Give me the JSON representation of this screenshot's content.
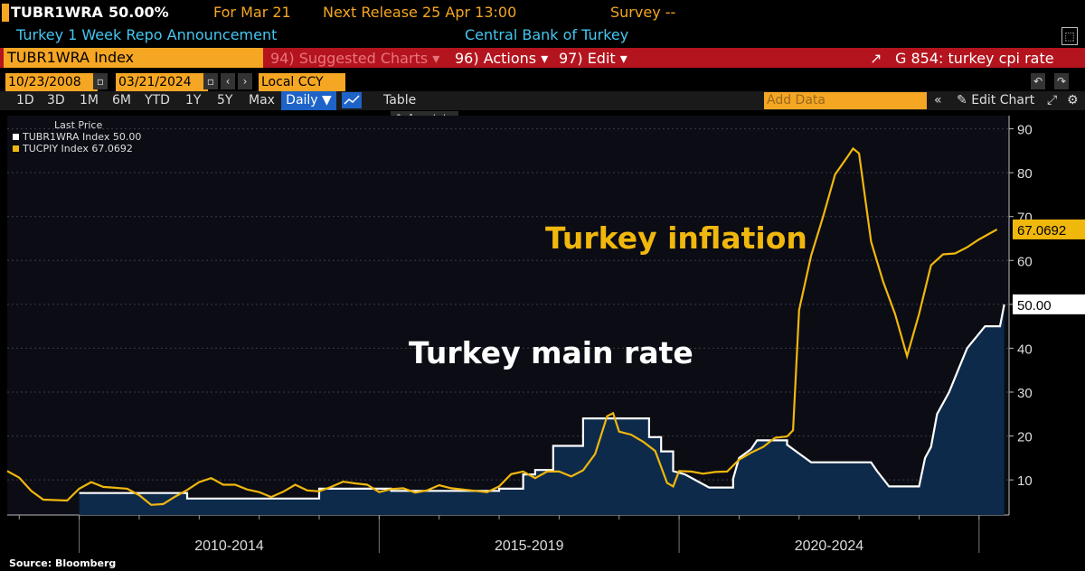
{
  "header": {
    "ticker": "TUBR1WRA",
    "value": "50.00%",
    "for_label": "For Mar 21",
    "next_release": "Next Release 25 Apr 13:00",
    "survey": "Survey --",
    "description": "Turkey 1 Week Repo Announcement",
    "source_org": "Central Bank of Turkey"
  },
  "toolbar": {
    "security": "TUBR1WRA Index",
    "suggested": "94) Suggested Charts ▾",
    "actions": "96) Actions ▾",
    "edit": "97) Edit ▾",
    "related": "G 854: turkey cpi rate",
    "start_date": "10/23/2008",
    "end_date": "03/21/2024",
    "currency": "Local CCY",
    "ranges": [
      "1D",
      "3D",
      "1M",
      "6M",
      "YTD",
      "1Y",
      "5Y",
      "Max"
    ],
    "frequency": "Daily ▼",
    "table": "Table",
    "add_data_placeholder": "Add Data",
    "edit_chart": "Edit Chart",
    "annotate": "Annotate"
  },
  "colors": {
    "orange": "#f5a623",
    "navy_fill": "#0e2a4a",
    "menu_red": "#b4141e",
    "rate_line": "#ffffff",
    "inflation_line": "#f0b70d"
  },
  "icons": [
    "chart-line-icon",
    "settings-gear-icon",
    "undo-icon",
    "redo-icon",
    "pencil-icon",
    "open-external-icon"
  ],
  "chart_data": {
    "type": "line",
    "legend_title": "Last Price",
    "series": [
      {
        "name": "TUBR1WRA Index",
        "last": "50.00",
        "color": "#ffffff",
        "fill": "#0e2a4a",
        "points": [
          [
            2010.0,
            7
          ],
          [
            2011.8,
            7
          ],
          [
            2011.8,
            5.75
          ],
          [
            2014.0,
            5.75
          ],
          [
            2014.0,
            8
          ],
          [
            2015.2,
            8
          ],
          [
            2015.2,
            7.5
          ],
          [
            2017.0,
            7.5
          ],
          [
            2017.0,
            8
          ],
          [
            2017.4,
            8
          ],
          [
            2017.4,
            11.25
          ],
          [
            2017.6,
            11.25
          ],
          [
            2017.6,
            12.25
          ],
          [
            2017.9,
            12.25
          ],
          [
            2017.9,
            17.75
          ],
          [
            2018.4,
            17.75
          ],
          [
            2018.4,
            24
          ],
          [
            2019.5,
            24
          ],
          [
            2019.5,
            19.75
          ],
          [
            2019.7,
            19.75
          ],
          [
            2019.7,
            16.5
          ],
          [
            2019.9,
            16.5
          ],
          [
            2019.9,
            12
          ],
          [
            2020.1,
            11.25
          ],
          [
            2020.3,
            9.75
          ],
          [
            2020.5,
            8.25
          ],
          [
            2020.9,
            8.25
          ],
          [
            2020.9,
            10.25
          ],
          [
            2021.0,
            15
          ],
          [
            2021.2,
            17
          ],
          [
            2021.3,
            19
          ],
          [
            2021.8,
            19
          ],
          [
            2021.8,
            18
          ],
          [
            2022.0,
            16
          ],
          [
            2022.2,
            14
          ],
          [
            2022.5,
            14
          ],
          [
            2023.2,
            14
          ],
          [
            2023.3,
            12
          ],
          [
            2023.5,
            8.5
          ],
          [
            2023.6,
            8.5
          ],
          [
            2024.0,
            8.5
          ],
          [
            2024.1,
            15
          ],
          [
            2024.2,
            17.5
          ],
          [
            2024.3,
            25
          ],
          [
            2024.5,
            30
          ],
          [
            2024.65,
            35
          ],
          [
            2024.8,
            40
          ],
          [
            2024.95,
            42.5
          ],
          [
            2025.1,
            45
          ],
          [
            2025.35,
            45
          ],
          [
            2025.42,
            50
          ]
        ]
      },
      {
        "name": "TUCPIY Index",
        "last": "67.0692",
        "color": "#f0b70d",
        "points": [
          [
            2008.8,
            12
          ],
          [
            2009.0,
            10.5
          ],
          [
            2009.2,
            7.5
          ],
          [
            2009.4,
            5.5
          ],
          [
            2009.6,
            5.4
          ],
          [
            2009.8,
            5.3
          ],
          [
            2010.0,
            8
          ],
          [
            2010.2,
            9.5
          ],
          [
            2010.4,
            8.4
          ],
          [
            2010.6,
            8.2
          ],
          [
            2010.8,
            8
          ],
          [
            2011.0,
            6.5
          ],
          [
            2011.2,
            4.3
          ],
          [
            2011.4,
            4.5
          ],
          [
            2011.6,
            6.2
          ],
          [
            2011.8,
            7.7
          ],
          [
            2012.0,
            9.5
          ],
          [
            2012.2,
            10.4
          ],
          [
            2012.4,
            8.9
          ],
          [
            2012.6,
            8.9
          ],
          [
            2012.8,
            7.8
          ],
          [
            2013.0,
            7.2
          ],
          [
            2013.2,
            6.1
          ],
          [
            2013.4,
            7.3
          ],
          [
            2013.6,
            8.9
          ],
          [
            2013.8,
            7.6
          ],
          [
            2014.0,
            7.4
          ],
          [
            2014.2,
            8.4
          ],
          [
            2014.4,
            9.6
          ],
          [
            2014.6,
            9.2
          ],
          [
            2014.8,
            8.9
          ],
          [
            2015.0,
            7.2
          ],
          [
            2015.2,
            7.9
          ],
          [
            2015.4,
            8.1
          ],
          [
            2015.6,
            7.1
          ],
          [
            2015.8,
            7.6
          ],
          [
            2016.0,
            8.8
          ],
          [
            2016.2,
            8.1
          ],
          [
            2016.4,
            7.8
          ],
          [
            2016.6,
            7.5
          ],
          [
            2016.8,
            7.2
          ],
          [
            2017.0,
            8.5
          ],
          [
            2017.2,
            11.3
          ],
          [
            2017.4,
            11.9
          ],
          [
            2017.6,
            10.4
          ],
          [
            2017.8,
            11.9
          ],
          [
            2018.0,
            11.9
          ],
          [
            2018.2,
            10.8
          ],
          [
            2018.4,
            12.2
          ],
          [
            2018.6,
            15.9
          ],
          [
            2018.8,
            24.5
          ],
          [
            2018.9,
            25.2
          ],
          [
            2019.0,
            21
          ],
          [
            2019.2,
            20.3
          ],
          [
            2019.4,
            18.7
          ],
          [
            2019.6,
            16.6
          ],
          [
            2019.8,
            9.3
          ],
          [
            2019.9,
            8.5
          ],
          [
            2020.0,
            12
          ],
          [
            2020.2,
            11.9
          ],
          [
            2020.4,
            11.4
          ],
          [
            2020.6,
            11.8
          ],
          [
            2020.8,
            11.9
          ],
          [
            2021.0,
            14.6
          ],
          [
            2021.2,
            16.2
          ],
          [
            2021.4,
            17.5
          ],
          [
            2021.6,
            19.6
          ],
          [
            2021.8,
            19.9
          ],
          [
            2021.9,
            21.3
          ],
          [
            2022.0,
            48.7
          ],
          [
            2022.2,
            61.1
          ],
          [
            2022.4,
            69.97
          ],
          [
            2022.6,
            79.6
          ],
          [
            2022.8,
            83.5
          ],
          [
            2022.9,
            85.5
          ],
          [
            2023.0,
            84.4
          ],
          [
            2023.2,
            64.3
          ],
          [
            2023.4,
            55.2
          ],
          [
            2023.6,
            47.8
          ],
          [
            2023.8,
            38.2
          ],
          [
            2024.0,
            47.8
          ],
          [
            2024.2,
            58.9
          ],
          [
            2024.4,
            61.4
          ],
          [
            2024.6,
            61.6
          ],
          [
            2024.8,
            63
          ],
          [
            2025.0,
            64.8
          ],
          [
            2025.3,
            67.07
          ]
        ]
      }
    ],
    "annotations": [
      "Turkey inflation",
      "Turkey main rate"
    ],
    "x_tick_labels": [
      "2010-2014",
      "2015-2019",
      "2020-2024"
    ],
    "y_ticks": [
      10,
      20,
      30,
      40,
      50,
      60,
      70,
      80,
      90
    ],
    "ylim": [
      2,
      93
    ],
    "xlim": [
      2008.8,
      2025.5
    ],
    "y_axis_side": "right",
    "source": "Source: Bloomberg"
  }
}
